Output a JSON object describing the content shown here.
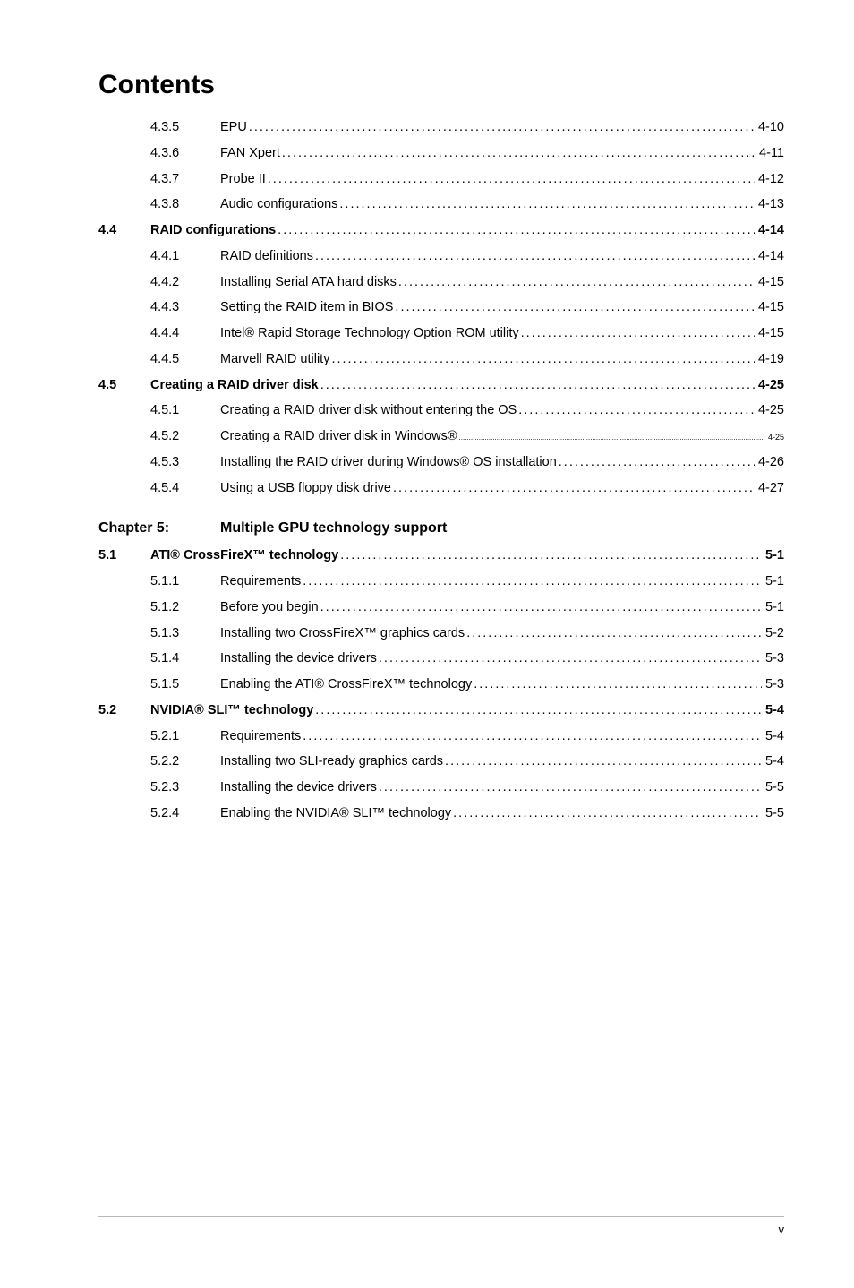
{
  "title": "Contents",
  "rows": [
    {
      "sec": "",
      "sub": "4.3.5",
      "label": "EPU",
      "page": "4-10",
      "bold": false,
      "indent": true
    },
    {
      "sec": "",
      "sub": "4.3.6",
      "label": "FAN Xpert",
      "page": "4-11",
      "bold": false,
      "indent": true
    },
    {
      "sec": "",
      "sub": "4.3.7",
      "label": "Probe II",
      "page": "4-12",
      "bold": false,
      "indent": true
    },
    {
      "sec": "",
      "sub": "4.3.8",
      "label": "Audio configurations",
      "page": "4-13",
      "bold": false,
      "indent": true
    },
    {
      "sec": "4.4",
      "sub": "",
      "label": "RAID configurations ",
      "page": "4-14",
      "bold": true,
      "indent": false
    },
    {
      "sec": "",
      "sub": "4.4.1",
      "label": "RAID definitions ",
      "page": "4-14",
      "bold": false,
      "indent": true
    },
    {
      "sec": "",
      "sub": "4.4.2",
      "label": "Installing Serial ATA hard disks ",
      "page": "4-15",
      "bold": false,
      "indent": true
    },
    {
      "sec": "",
      "sub": "4.4.3",
      "label": "Setting the RAID item in BIOS ",
      "page": "4-15",
      "bold": false,
      "indent": true
    },
    {
      "sec": "",
      "sub": "4.4.4",
      "label": "Intel® Rapid Storage Technology Option ROM utility ",
      "page": "4-15",
      "bold": false,
      "indent": true
    },
    {
      "sec": "",
      "sub": "4.4.5",
      "label": "Marvell RAID utility",
      "page": "4-19",
      "bold": false,
      "indent": true
    },
    {
      "sec": "4.5",
      "sub": "",
      "label": "Creating a RAID driver disk",
      "page": "4-25",
      "bold": true,
      "indent": false
    },
    {
      "sec": "",
      "sub": "4.5.1",
      "label": "Creating a RAID driver disk without entering the OS",
      "page": "4-25",
      "bold": false,
      "indent": true
    },
    {
      "sec": "",
      "sub": "4.5.2",
      "label": "Creating a RAID driver disk in Windows®",
      "page": "4-25",
      "bold": false,
      "indent": true,
      "small": true
    },
    {
      "sec": "",
      "sub": "4.5.3",
      "label": "Installing the RAID driver during Windows® OS installation",
      "page": "4-26",
      "bold": false,
      "indent": true
    },
    {
      "sec": "",
      "sub": "4.5.4",
      "label": "Using a USB floppy disk drive",
      "page": "4-27",
      "bold": false,
      "indent": true
    }
  ],
  "chapter": {
    "label": "Chapter 5:",
    "title": "Multiple GPU technology support"
  },
  "rows2": [
    {
      "sec": "5.1",
      "sub": "",
      "label": "ATI® CrossFireX™ technology",
      "page": "5-1",
      "bold": true,
      "indent": false
    },
    {
      "sec": "",
      "sub": "5.1.1",
      "label": "Requirements",
      "page": "5-1",
      "bold": false,
      "indent": true
    },
    {
      "sec": "",
      "sub": "5.1.2",
      "label": "Before you begin",
      "page": "5-1",
      "bold": false,
      "indent": true
    },
    {
      "sec": "",
      "sub": "5.1.3",
      "label": "Installing two CrossFireX™ graphics cards ",
      "page": "5-2",
      "bold": false,
      "indent": true
    },
    {
      "sec": "",
      "sub": "5.1.4",
      "label": "Installing the device drivers",
      "page": "5-3",
      "bold": false,
      "indent": true
    },
    {
      "sec": "",
      "sub": "5.1.5",
      "label": "Enabling the ATI® CrossFireX™ technology ",
      "page": "5-3",
      "bold": false,
      "indent": true
    },
    {
      "sec": "5.2",
      "sub": "",
      "label": "NVIDIA® SLI™ technology",
      "page": "5-4",
      "bold": true,
      "indent": false
    },
    {
      "sec": "",
      "sub": "5.2.1",
      "label": "Requirements",
      "page": "5-4",
      "bold": false,
      "indent": true
    },
    {
      "sec": "",
      "sub": "5.2.2",
      "label": "Installing two SLI-ready graphics cards ",
      "page": "5-4",
      "bold": false,
      "indent": true
    },
    {
      "sec": "",
      "sub": "5.2.3",
      "label": "Installing the device drivers",
      "page": "5-5",
      "bold": false,
      "indent": true
    },
    {
      "sec": "",
      "sub": "5.2.4",
      "label": "Enabling the NVIDIA® SLI™ technology ",
      "page": "5-5",
      "bold": false,
      "indent": true
    }
  ],
  "footer": "v"
}
